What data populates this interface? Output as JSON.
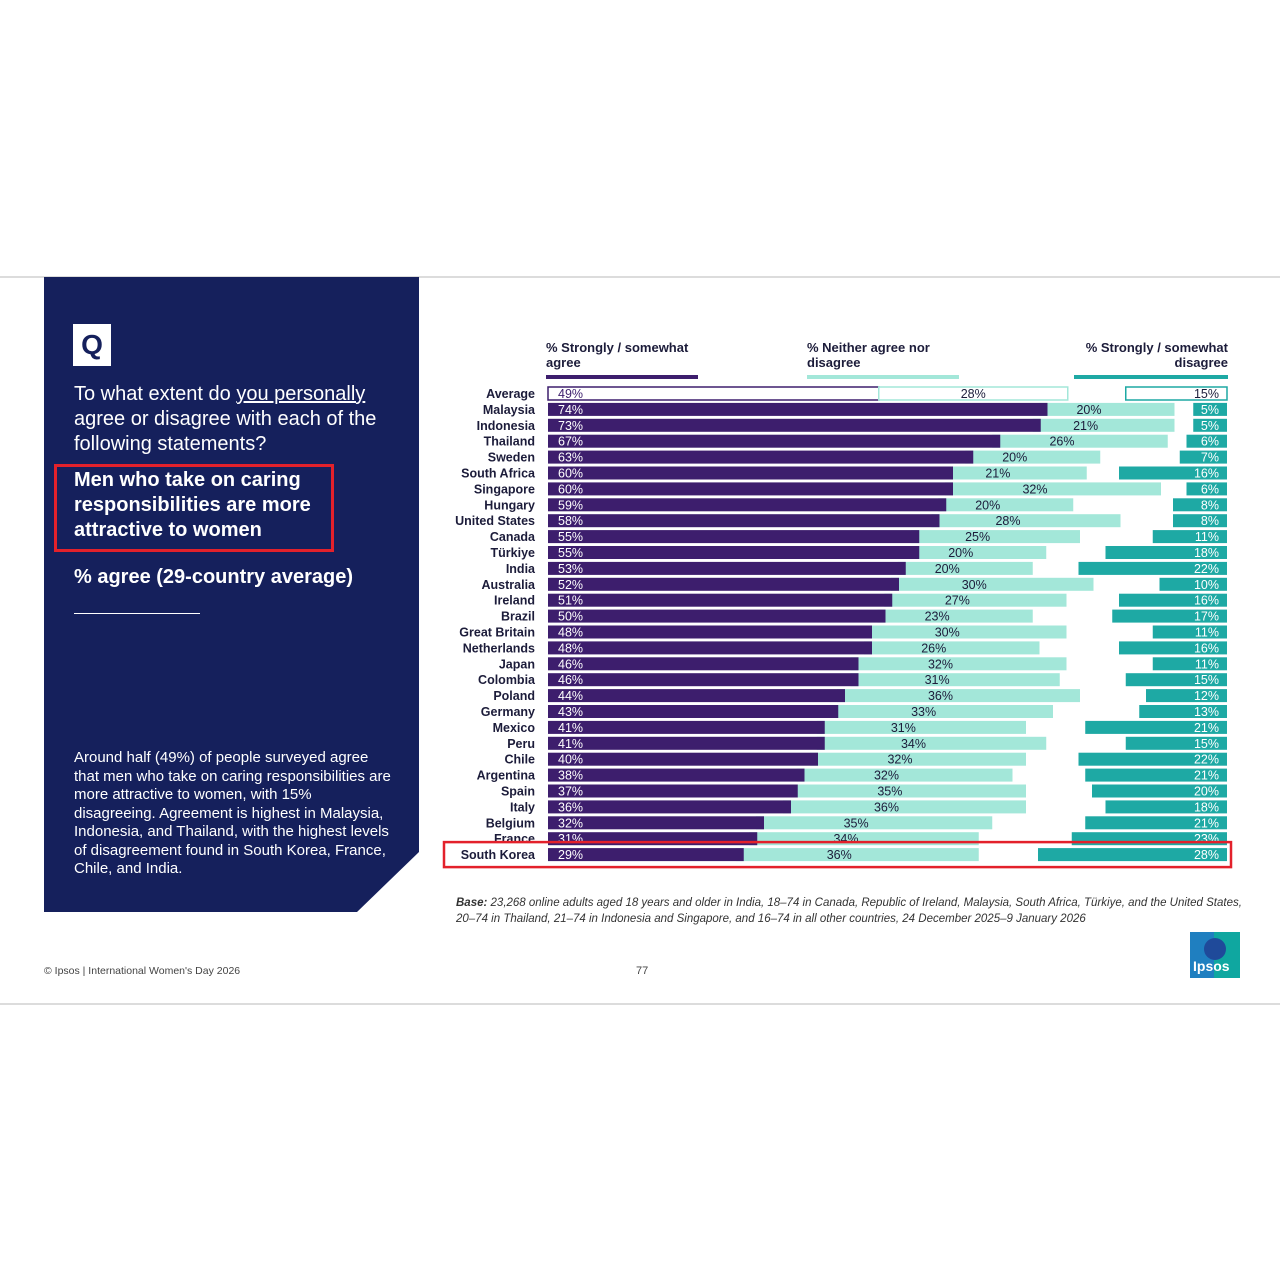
{
  "question": {
    "badge": "Q",
    "prefix": "To what extent do ",
    "underlined": "you personally",
    "suffix": " agree or disagree with each of the following statements?"
  },
  "statement": "Men who take on caring responsibilities are more attractive to women",
  "agree_label": "% agree (29-country average)",
  "summary": "Around half (49%) of people surveyed agree that men who take on caring responsibilities are more attractive to women, with 15% disagreeing. Agreement is highest in Malaysia, Indonesia, and Thailand, with the highest levels of disagreement found in South Korea, France, Chile, and India.",
  "base_label": "Base:",
  "base_text": " 23,268 online adults aged 18 years and older in India, 18–74 in Canada, Republic of Ireland, Malaysia, South Africa, Türkiye, and the United States, 20–74 in Thailand, 21–74 in Indonesia and Singapore, and 16–74 in all other countries, 24 December 2025–9 January 2026",
  "footer": "© Ipsos | International Women's Day 2026",
  "page_number": "77",
  "logo_text": "Ipsos",
  "colors": {
    "panel": "#15205c",
    "agree": "#3d1e6d",
    "neither": "#a3e7d9",
    "disagree": "#1ea9a4",
    "highlight": "#e3212b"
  },
  "chart_data": {
    "type": "bar",
    "stacked": true,
    "orientation": "horizontal",
    "unit": "%",
    "series": [
      {
        "name": "% Strongly / somewhat agree",
        "color": "#3d1e6d"
      },
      {
        "name": "% Neither agree nor disagree",
        "color": "#a3e7d9"
      },
      {
        "name": "% Strongly / somewhat disagree",
        "color": "#1ea9a4"
      }
    ],
    "categories": [
      "Average",
      "Malaysia",
      "Indonesia",
      "Thailand",
      "Sweden",
      "South Africa",
      "Singapore",
      "Hungary",
      "United States",
      "Canada",
      "Türkiye",
      "India",
      "Australia",
      "Ireland",
      "Brazil",
      "Great Britain",
      "Netherlands",
      "Japan",
      "Colombia",
      "Poland",
      "Germany",
      "Mexico",
      "Peru",
      "Chile",
      "Argentina",
      "Spain",
      "Italy",
      "Belgium",
      "France",
      "South Korea"
    ],
    "agree": [
      49,
      74,
      73,
      67,
      63,
      60,
      60,
      59,
      58,
      55,
      55,
      53,
      52,
      51,
      50,
      48,
      48,
      46,
      46,
      44,
      43,
      41,
      41,
      40,
      38,
      37,
      36,
      32,
      31,
      29
    ],
    "neither": [
      28,
      20,
      21,
      26,
      20,
      21,
      32,
      20,
      28,
      25,
      20,
      20,
      30,
      27,
      23,
      30,
      26,
      32,
      31,
      36,
      33,
      31,
      34,
      32,
      32,
      35,
      36,
      35,
      34,
      36
    ],
    "disagree": [
      15,
      5,
      5,
      6,
      7,
      16,
      6,
      8,
      8,
      11,
      18,
      22,
      10,
      16,
      17,
      11,
      16,
      11,
      15,
      12,
      13,
      21,
      15,
      22,
      21,
      20,
      18,
      21,
      23,
      28
    ],
    "highlight": "South Korea"
  }
}
